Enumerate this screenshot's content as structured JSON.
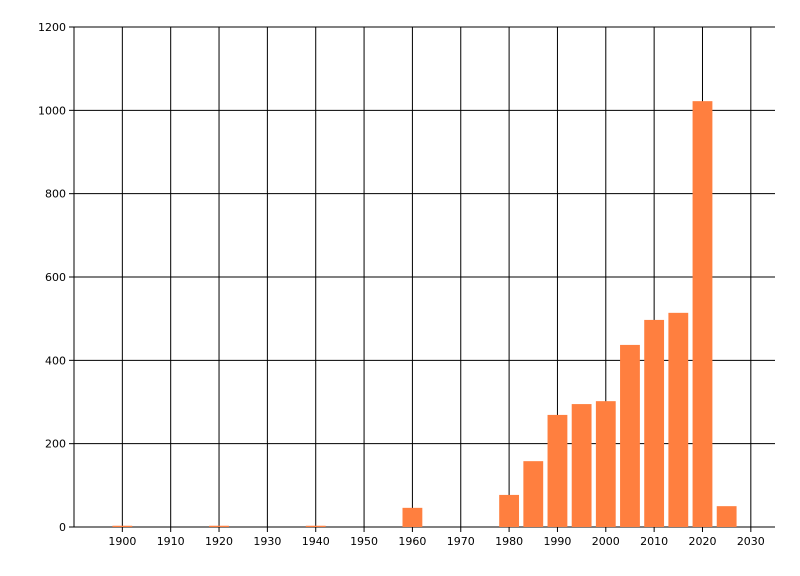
{
  "chart_data": {
    "type": "bar",
    "x": [
      1900,
      1920,
      1940,
      1960,
      1980,
      1985,
      1990,
      1995,
      2000,
      2005,
      2010,
      2015,
      2020,
      2025
    ],
    "values": [
      3,
      3,
      3,
      46,
      77,
      158,
      269,
      295,
      302,
      437,
      497,
      514,
      1022,
      50
    ],
    "color": "#ff7f3f",
    "xlim": [
      1890,
      2035
    ],
    "ylim": [
      0,
      1200
    ],
    "xticks": [
      1900,
      1910,
      1920,
      1930,
      1940,
      1950,
      1960,
      1970,
      1980,
      1990,
      2000,
      2010,
      2020,
      2030
    ],
    "yticks": [
      0,
      200,
      400,
      600,
      800,
      1000,
      1200
    ],
    "grid": true
  }
}
